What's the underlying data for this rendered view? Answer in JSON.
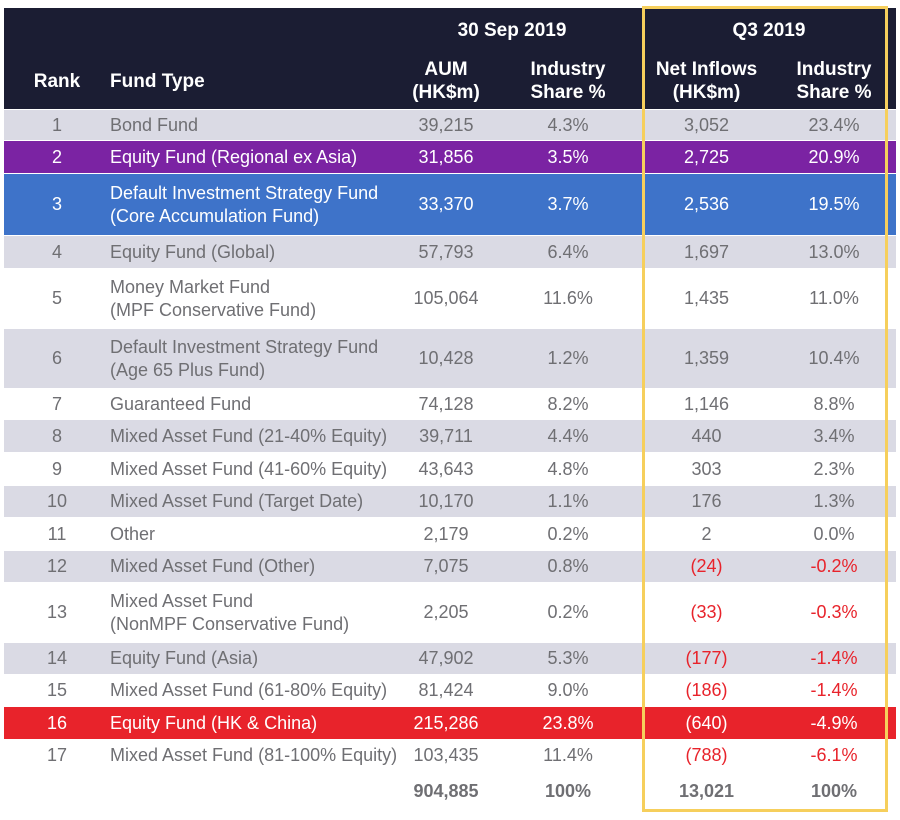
{
  "header": {
    "group_left": "30 Sep 2019",
    "group_right": "Q3 2019",
    "col_rank": "Rank",
    "col_fund_type": "Fund Type",
    "col_aum": [
      "AUM",
      "(HK$m)"
    ],
    "col_industry_share": [
      "Industry",
      "Share %"
    ],
    "col_net_inflows": [
      "Net Inflows",
      "(HK$m)"
    ],
    "col_q_industry_share": [
      "Industry",
      "Share %"
    ]
  },
  "colors": {
    "header_bg": "#1b1d33",
    "alt_row_bg": "#dadae4",
    "purple": "#7b23a3",
    "blue": "#3e73c9",
    "red": "#e8232b",
    "highlight_border": "#f6cf5c",
    "negative_text": "#e8232b"
  },
  "rows": [
    {
      "rank": "1",
      "fund_type": [
        "Bond Fund"
      ],
      "aum": "39,215",
      "industry_share": "4.3%",
      "net_inflows": "3,052",
      "q_share": "23.4%",
      "style": "alt",
      "negative": false
    },
    {
      "rank": "2",
      "fund_type": [
        "Equity Fund (Regional ex Asia)"
      ],
      "aum": "31,856",
      "industry_share": "3.5%",
      "net_inflows": "2,725",
      "q_share": "20.9%",
      "style": "purple",
      "negative": false
    },
    {
      "rank": "3",
      "fund_type": [
        "Default Investment Strategy Fund",
        "(Core Accumulation Fund)"
      ],
      "aum": "33,370",
      "industry_share": "3.7%",
      "net_inflows": "2,536",
      "q_share": "19.5%",
      "style": "blue",
      "negative": false
    },
    {
      "rank": "4",
      "fund_type": [
        "Equity Fund (Global)"
      ],
      "aum": "57,793",
      "industry_share": "6.4%",
      "net_inflows": "1,697",
      "q_share": "13.0%",
      "style": "alt",
      "negative": false
    },
    {
      "rank": "5",
      "fund_type": [
        "Money Market Fund",
        "(MPF Conservative Fund)"
      ],
      "aum": "105,064",
      "industry_share": "11.6%",
      "net_inflows": "1,435",
      "q_share": "11.0%",
      "style": "plain",
      "negative": false
    },
    {
      "rank": "6",
      "fund_type": [
        "Default Investment Strategy Fund",
        "(Age 65 Plus Fund)"
      ],
      "aum": "10,428",
      "industry_share": "1.2%",
      "net_inflows": "1,359",
      "q_share": "10.4%",
      "style": "alt",
      "negative": false
    },
    {
      "rank": "7",
      "fund_type": [
        "Guaranteed Fund"
      ],
      "aum": "74,128",
      "industry_share": "8.2%",
      "net_inflows": "1,146",
      "q_share": "8.8%",
      "style": "plain",
      "negative": false
    },
    {
      "rank": "8",
      "fund_type": [
        "Mixed Asset Fund (21-40% Equity)"
      ],
      "aum": "39,711",
      "industry_share": "4.4%",
      "net_inflows": "440",
      "q_share": "3.4%",
      "style": "alt",
      "negative": false
    },
    {
      "rank": "9",
      "fund_type": [
        "Mixed Asset Fund (41-60% Equity)"
      ],
      "aum": "43,643",
      "industry_share": "4.8%",
      "net_inflows": "303",
      "q_share": "2.3%",
      "style": "plain",
      "negative": false
    },
    {
      "rank": "10",
      "fund_type": [
        "Mixed Asset Fund (Target Date)"
      ],
      "aum": "10,170",
      "industry_share": "1.1%",
      "net_inflows": "176",
      "q_share": "1.3%",
      "style": "alt",
      "negative": false
    },
    {
      "rank": "11",
      "fund_type": [
        "Other"
      ],
      "aum": "2,179",
      "industry_share": "0.2%",
      "net_inflows": "2",
      "q_share": "0.0%",
      "style": "plain",
      "negative": false
    },
    {
      "rank": "12",
      "fund_type": [
        "Mixed Asset Fund (Other)"
      ],
      "aum": "7,075",
      "industry_share": "0.8%",
      "net_inflows": "(24)",
      "q_share": "-0.2%",
      "style": "alt",
      "negative": true
    },
    {
      "rank": "13",
      "fund_type": [
        "Mixed Asset Fund",
        "(NonMPF Conservative Fund)"
      ],
      "aum": "2,205",
      "industry_share": "0.2%",
      "net_inflows": "(33)",
      "q_share": "-0.3%",
      "style": "plain",
      "negative": true
    },
    {
      "rank": "14",
      "fund_type": [
        "Equity Fund (Asia)"
      ],
      "aum": "47,902",
      "industry_share": "5.3%",
      "net_inflows": "(177)",
      "q_share": "-1.4%",
      "style": "alt",
      "negative": true
    },
    {
      "rank": "15",
      "fund_type": [
        "Mixed Asset Fund (61-80% Equity)"
      ],
      "aum": "81,424",
      "industry_share": "9.0%",
      "net_inflows": "(186)",
      "q_share": "-1.4%",
      "style": "plain",
      "negative": true
    },
    {
      "rank": "16",
      "fund_type": [
        "Equity Fund (HK & China)"
      ],
      "aum": "215,286",
      "industry_share": "23.8%",
      "net_inflows": "(640)",
      "q_share": "-4.9%",
      "style": "red",
      "negative": true
    },
    {
      "rank": "17",
      "fund_type": [
        "Mixed Asset Fund (81-100% Equity)"
      ],
      "aum": "103,435",
      "industry_share": "11.4%",
      "net_inflows": "(788)",
      "q_share": "-6.1%",
      "style": "plain",
      "negative": true
    }
  ],
  "total": {
    "aum": "904,885",
    "industry_share": "100%",
    "net_inflows": "13,021",
    "q_share": "100%"
  }
}
